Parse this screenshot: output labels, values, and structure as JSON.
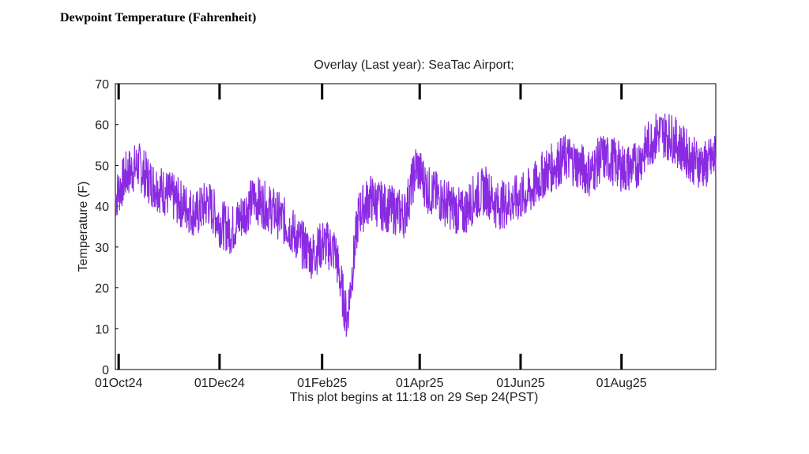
{
  "page": {
    "heading": "Dewpoint Temperature (Fahrenheit)"
  },
  "chart_data": {
    "type": "line",
    "title": "Overlay (Last year): SeaTac Airport;",
    "ylabel": "Temperature (F)",
    "xlabel": "",
    "note": "This plot begins at 11:18 on 29 Sep 24(PST)",
    "ylim": [
      0,
      70
    ],
    "yticks": [
      0,
      10,
      20,
      30,
      40,
      50,
      60,
      70
    ],
    "xlim": [
      "2024-09-29",
      "2025-09-27"
    ],
    "xticks": [
      {
        "label": "01Oct24",
        "date": "2024-10-01"
      },
      {
        "label": "01Dec24",
        "date": "2024-12-01"
      },
      {
        "label": "01Feb25",
        "date": "2025-02-01"
      },
      {
        "label": "01Apr25",
        "date": "2025-04-01"
      },
      {
        "label": "01Jun25",
        "date": "2025-06-01"
      },
      {
        "label": "01Aug25",
        "date": "2025-08-01"
      }
    ],
    "grid": false,
    "series": [
      {
        "name": "",
        "color": "#8a2be2",
        "x": [
          "2024-09-29",
          "2024-10-06",
          "2024-10-13",
          "2024-10-20",
          "2024-10-27",
          "2024-11-03",
          "2024-11-10",
          "2024-11-17",
          "2024-11-24",
          "2024-12-01",
          "2024-12-08",
          "2024-12-15",
          "2024-12-22",
          "2024-12-29",
          "2025-01-05",
          "2025-01-12",
          "2025-01-19",
          "2025-01-26",
          "2025-02-02",
          "2025-02-09",
          "2025-02-16",
          "2025-02-23",
          "2025-03-02",
          "2025-03-09",
          "2025-03-16",
          "2025-03-23",
          "2025-03-30",
          "2025-04-06",
          "2025-04-13",
          "2025-04-20",
          "2025-04-27",
          "2025-05-04",
          "2025-05-11",
          "2025-05-18",
          "2025-05-25",
          "2025-06-01",
          "2025-06-08",
          "2025-06-15",
          "2025-06-22",
          "2025-06-29",
          "2025-07-06",
          "2025-07-13",
          "2025-07-20",
          "2025-07-27",
          "2025-08-03",
          "2025-08-10",
          "2025-08-17",
          "2025-08-24",
          "2025-08-31",
          "2025-09-07",
          "2025-09-14",
          "2025-09-21",
          "2025-09-27"
        ],
        "y": [
          42,
          48,
          50,
          46,
          44,
          42,
          40,
          38,
          41,
          36,
          34,
          38,
          42,
          40,
          38,
          35,
          31,
          28,
          31,
          29,
          12,
          38,
          42,
          40,
          39,
          38,
          50,
          44,
          42,
          40,
          38,
          42,
          44,
          40,
          41,
          42,
          44,
          48,
          50,
          52,
          50,
          48,
          52,
          51,
          49,
          50,
          55,
          58,
          57,
          54,
          51,
          50,
          52
        ]
      }
    ]
  }
}
